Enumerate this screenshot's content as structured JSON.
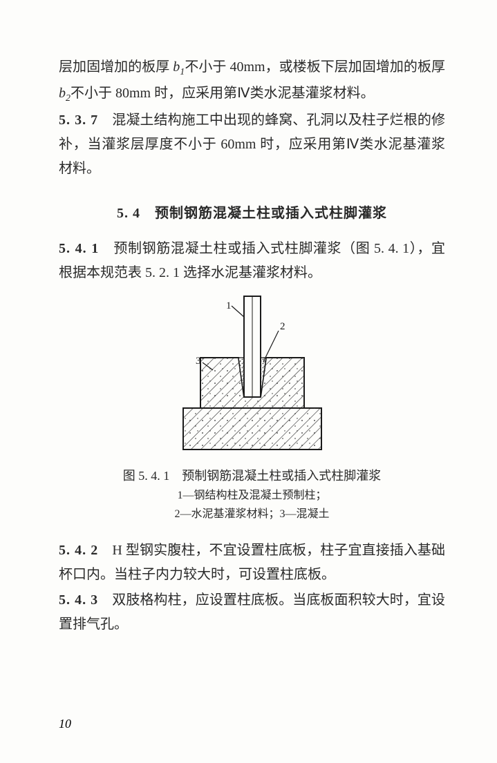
{
  "p1_a": "层加固增加的板厚 ",
  "p1_var1": "b",
  "p1_sub1": "1",
  "p1_b": "不小于 40mm，或楼板下层加固增加的板厚 ",
  "p1_var2": "b",
  "p1_sub2": "2",
  "p1_c": "不小于 80mm 时，应采用第Ⅳ类水泥基灌浆材料。",
  "p2_num": "5. 3. 7",
  "p2_txt": "　混凝土结构施工中出现的蜂窝、孔洞以及柱子烂根的修补，当灌浆层厚度不小于 60mm 时，应采用第Ⅳ类水泥基灌浆材料。",
  "sec_title": "5. 4　预制钢筋混凝土柱或插入式柱脚灌浆",
  "p3_num": "5. 4. 1",
  "p3_txt": "　预制钢筋混凝土柱或插入式柱脚灌浆（图 5. 4. 1），宜根据本规范表 5. 2. 1 选择水泥基灌浆材料。",
  "figure": {
    "label1": "1",
    "label2": "2",
    "label3": "3",
    "stroke": "#1a1a1a",
    "hatch": "#2a2a2a",
    "grout": "#3a3a3a",
    "bg": "#fdfdfb"
  },
  "caption_main": "图 5. 4. 1　预制钢筋混凝土柱或插入式柱脚灌浆",
  "caption_l1": "1—钢结构柱及混凝土预制柱；",
  "caption_l2": "2—水泥基灌浆材料；3—混凝土",
  "p4_num": "5. 4. 2",
  "p4_txt": "　H 型钢实腹柱，不宜设置柱底板，柱子宜直接插入基础杯口内。当柱子内力较大时，可设置柱底板。",
  "p5_num": "5. 4. 3",
  "p5_txt": "　双肢格构柱，应设置柱底板。当底板面积较大时，宜设置排气孔。",
  "page_number": "10"
}
